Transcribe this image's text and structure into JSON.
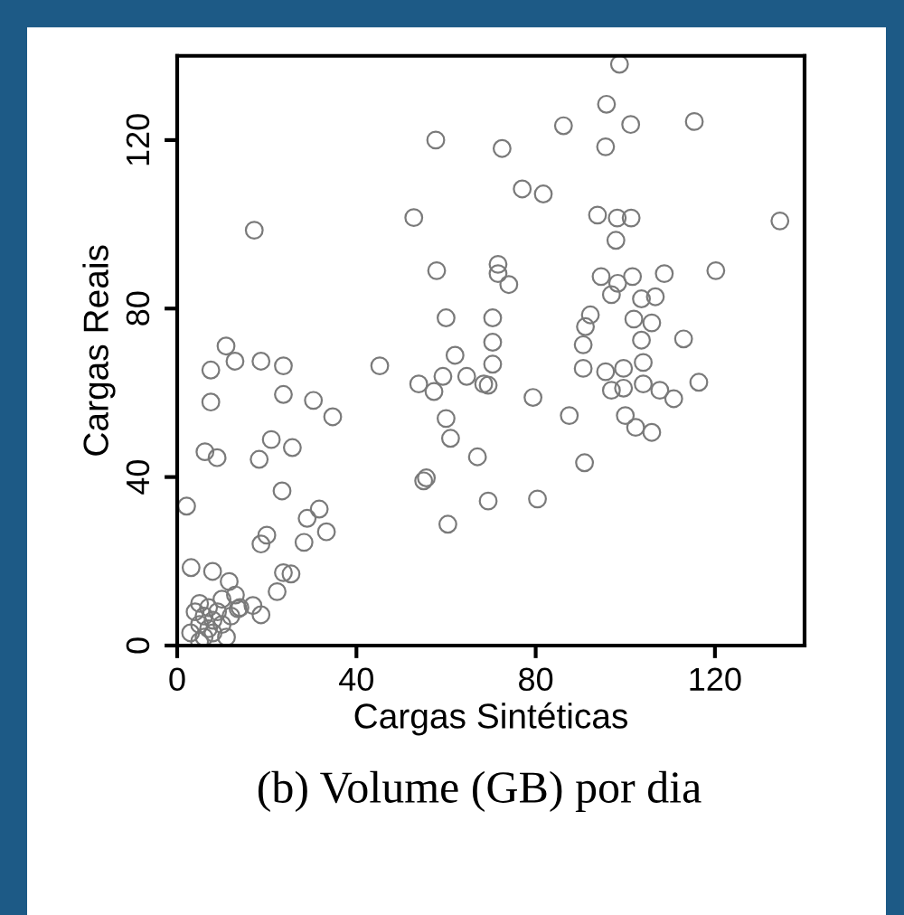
{
  "chart_data": {
    "type": "scatter",
    "xlabel": "Cargas Sintéticas",
    "ylabel": "Cargas Reais",
    "annotations": [
      "(b) Volume (GB) por dia"
    ],
    "xlim": [
      0,
      140
    ],
    "ylim": [
      0,
      140
    ],
    "xticks": [
      0,
      40,
      80,
      120
    ],
    "yticks": [
      0,
      40,
      80,
      120
    ],
    "grid": false,
    "marker": "circle",
    "series": [
      {
        "color": "#7a7a7a",
        "x": [
          57.7,
          72.5,
          17.2,
          52.8,
          57.9,
          71.6,
          71.6,
          60,
          70.4,
          10.9,
          98.7,
          95.8,
          86.2,
          101.2,
          115.4,
          95.6,
          77,
          81.7,
          93.8,
          98.2,
          101.3,
          97.9,
          134.5,
          74,
          94.6,
          98.3,
          101.6,
          96.9,
          108.7,
          120.2,
          103.6,
          106.7,
          92.2,
          91.1,
          101.9,
          105.9,
          90.6,
          103.6,
          113,
          70.4,
          70.4,
          69.4,
          90.6,
          95.6,
          99.6,
          104,
          96.9,
          99.6,
          104,
          107.7,
          110.8,
          116.4,
          79.4,
          87.5,
          100,
          102.3,
          105.9,
          90.9,
          69.4,
          80.4,
          7.5,
          12.9,
          18.7,
          23.7,
          45.2,
          7.5,
          23.7,
          30.4,
          34.7,
          6.2,
          8.9,
          21,
          18.3,
          25.7,
          23.4,
          2.1,
          31.7,
          29,
          33.3,
          20,
          18.7,
          28.3,
          53.9,
          57.3,
          59.3,
          62,
          64.6,
          68.4,
          60,
          61,
          67,
          55,
          55.6,
          60.4,
          3.1,
          7.9,
          11.6,
          23.7,
          25.4,
          22.3,
          13.6,
          16.9,
          18.7,
          3,
          4,
          5,
          5,
          6,
          6,
          7,
          7,
          8,
          8,
          9,
          10,
          10,
          11,
          12,
          13,
          14,
          5
        ],
        "values": [
          120,
          118,
          98.6,
          101.6,
          89,
          90.5,
          88.3,
          77.8,
          77.8,
          71.1,
          138,
          128.5,
          123.4,
          123.7,
          124.4,
          118.4,
          108.4,
          107.2,
          102.2,
          101.5,
          101.5,
          96.2,
          100.8,
          85.7,
          87.6,
          86,
          87.6,
          83.3,
          88.3,
          89,
          82.3,
          82.8,
          78.5,
          75.7,
          77.5,
          76.6,
          71.4,
          72.5,
          72.8,
          72,
          66.8,
          61.8,
          65.8,
          65,
          65.8,
          67.2,
          60.6,
          61.1,
          62.1,
          60.6,
          58.6,
          62.5,
          58.9,
          54.6,
          54.6,
          51.8,
          50.6,
          43.4,
          34.3,
          34.8,
          65.4,
          67.5,
          67.5,
          66.4,
          66.4,
          57.8,
          59.6,
          58.2,
          54.3,
          46,
          44.6,
          48.9,
          44.2,
          47,
          36.7,
          33.1,
          32.4,
          30.2,
          27,
          26.2,
          24.1,
          24.5,
          62.1,
          60.3,
          63.9,
          68.9,
          63.9,
          62.1,
          53.9,
          49.2,
          44.8,
          39.1,
          39.8,
          28.8,
          18.5,
          17.6,
          15.2,
          17.3,
          17,
          12.8,
          8.7,
          9.5,
          7.3,
          3,
          8,
          5,
          10,
          2,
          7,
          4,
          9,
          3,
          6,
          8,
          5,
          11,
          2,
          7,
          12,
          9,
          1
        ]
      }
    ]
  }
}
